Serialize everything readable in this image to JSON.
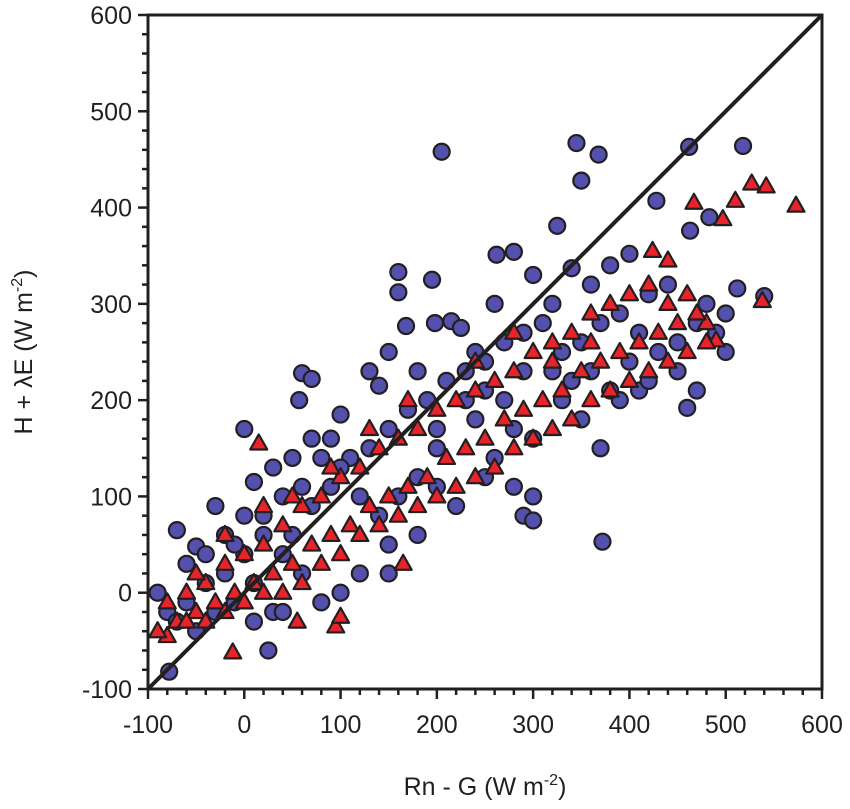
{
  "chart_data": {
    "type": "scatter",
    "title": "",
    "xlabel": "Rn - G (W m",
    "xlabel_sup": "-2",
    "xlabel_end": ")",
    "ylabel": "H + λE (W m",
    "ylabel_sup": "-2",
    "ylabel_end": ")",
    "xlim": [
      -100,
      600
    ],
    "ylim": [
      -100,
      600
    ],
    "xticks": [
      -100,
      0,
      100,
      200,
      300,
      400,
      500,
      600
    ],
    "yticks": [
      -100,
      0,
      100,
      200,
      300,
      400,
      500,
      600
    ],
    "xtick_labels": [
      "-100",
      "0",
      "100",
      "200",
      "300",
      "400",
      "500",
      "600"
    ],
    "ytick_labels": [
      "-100",
      "0",
      "100",
      "200",
      "300",
      "400",
      "500",
      "600"
    ],
    "minor_tick_step": 20,
    "grid": false,
    "reference_line": {
      "name": "1:1 line",
      "x": [
        -100,
        600
      ],
      "y": [
        -100,
        600
      ],
      "color": "#231f20"
    },
    "series": [
      {
        "name": "circles",
        "marker": "circle",
        "color": "#5350ae",
        "points": [
          [
            205,
            458
          ],
          [
            345,
            467
          ],
          [
            368,
            455
          ],
          [
            350,
            428
          ],
          [
            462,
            463
          ],
          [
            518,
            464
          ],
          [
            428,
            407
          ],
          [
            483,
            390
          ],
          [
            463,
            376
          ],
          [
            325,
            381
          ],
          [
            280,
            354
          ],
          [
            262,
            351
          ],
          [
            400,
            352
          ],
          [
            160,
            333
          ],
          [
            195,
            325
          ],
          [
            160,
            312
          ],
          [
            168,
            277
          ],
          [
            198,
            280
          ],
          [
            215,
            282
          ],
          [
            225,
            275
          ],
          [
            340,
            337
          ],
          [
            540,
            308
          ],
          [
            512,
            316
          ],
          [
            60,
            228
          ],
          [
            70,
            222
          ],
          [
            57,
            200
          ],
          [
            0,
            170
          ],
          [
            100,
            185
          ],
          [
            372,
            53
          ],
          [
            290,
            80
          ],
          [
            300,
            75
          ],
          [
            10,
            115
          ],
          [
            -78,
            -82
          ],
          [
            25,
            -60
          ],
          [
            460,
            192
          ],
          [
            470,
            210
          ],
          [
            -70,
            65
          ],
          [
            -50,
            48
          ],
          [
            130,
            230
          ],
          [
            140,
            215
          ],
          [
            150,
            250
          ],
          [
            180,
            230
          ],
          [
            240,
            250
          ],
          [
            260,
            300
          ],
          [
            300,
            330
          ],
          [
            320,
            300
          ],
          [
            360,
            320
          ],
          [
            380,
            340
          ],
          [
            420,
            310
          ],
          [
            440,
            320
          ],
          [
            480,
            300
          ],
          [
            500,
            290
          ],
          [
            300,
            100
          ],
          [
            280,
            110
          ],
          [
            250,
            120
          ],
          [
            220,
            90
          ],
          [
            180,
            60
          ],
          [
            150,
            50
          ],
          [
            120,
            20
          ],
          [
            100,
            0
          ],
          [
            80,
            -10
          ],
          [
            60,
            20
          ],
          [
            40,
            40
          ],
          [
            20,
            60
          ],
          [
            0,
            40
          ],
          [
            -20,
            20
          ],
          [
            -40,
            10
          ],
          [
            -60,
            -10
          ],
          [
            -80,
            -20
          ],
          [
            -90,
            0
          ],
          [
            -70,
            -30
          ],
          [
            -50,
            -40
          ],
          [
            -30,
            -20
          ],
          [
            -10,
            -10
          ],
          [
            10,
            10
          ],
          [
            30,
            -20
          ],
          [
            50,
            60
          ],
          [
            70,
            90
          ],
          [
            90,
            110
          ],
          [
            110,
            140
          ],
          [
            130,
            150
          ],
          [
            150,
            170
          ],
          [
            170,
            190
          ],
          [
            190,
            200
          ],
          [
            210,
            220
          ],
          [
            230,
            230
          ],
          [
            250,
            240
          ],
          [
            270,
            260
          ],
          [
            290,
            270
          ],
          [
            310,
            280
          ],
          [
            330,
            250
          ],
          [
            350,
            260
          ],
          [
            370,
            280
          ],
          [
            390,
            290
          ],
          [
            410,
            270
          ],
          [
            430,
            250
          ],
          [
            450,
            260
          ],
          [
            470,
            280
          ],
          [
            490,
            270
          ],
          [
            330,
            200
          ],
          [
            350,
            180
          ],
          [
            370,
            150
          ],
          [
            390,
            200
          ],
          [
            410,
            210
          ],
          [
            300,
            160
          ],
          [
            280,
            170
          ],
          [
            260,
            140
          ],
          [
            240,
            180
          ],
          [
            200,
            150
          ],
          [
            180,
            120
          ],
          [
            160,
            100
          ],
          [
            140,
            80
          ],
          [
            120,
            100
          ],
          [
            100,
            130
          ],
          [
            80,
            140
          ],
          [
            60,
            110
          ],
          [
            40,
            100
          ],
          [
            20,
            80
          ],
          [
            0,
            80
          ],
          [
            -20,
            60
          ],
          [
            -40,
            40
          ],
          [
            -60,
            30
          ],
          [
            30,
            130
          ],
          [
            50,
            140
          ],
          [
            70,
            160
          ],
          [
            90,
            160
          ],
          [
            200,
            170
          ],
          [
            230,
            200
          ],
          [
            270,
            200
          ],
          [
            320,
            230
          ],
          [
            360,
            230
          ],
          [
            400,
            240
          ],
          [
            450,
            230
          ],
          [
            500,
            250
          ],
          [
            -30,
            90
          ],
          [
            -10,
            50
          ],
          [
            10,
            -30
          ],
          [
            40,
            -20
          ],
          [
            150,
            20
          ],
          [
            200,
            110
          ],
          [
            250,
            210
          ],
          [
            290,
            230
          ],
          [
            340,
            220
          ],
          [
            380,
            210
          ],
          [
            420,
            220
          ]
        ]
      },
      {
        "name": "triangles",
        "marker": "triangle",
        "color": "#e8242a",
        "points": [
          [
            573,
            402
          ],
          [
            542,
            422
          ],
          [
            527,
            425
          ],
          [
            497,
            388
          ],
          [
            510,
            407
          ],
          [
            467,
            405
          ],
          [
            538,
            303
          ],
          [
            424,
            355
          ],
          [
            440,
            345
          ],
          [
            480,
            280
          ],
          [
            490,
            262
          ],
          [
            15,
            155
          ],
          [
            -12,
            -62
          ],
          [
            -80,
            -45
          ],
          [
            95,
            -35
          ],
          [
            55,
            -30
          ],
          [
            165,
            30
          ],
          [
            100,
            -25
          ],
          [
            -90,
            -40
          ],
          [
            -70,
            -30
          ],
          [
            -50,
            -20
          ],
          [
            -30,
            -10
          ],
          [
            -10,
            0
          ],
          [
            10,
            10
          ],
          [
            30,
            20
          ],
          [
            50,
            30
          ],
          [
            70,
            50
          ],
          [
            90,
            60
          ],
          [
            110,
            70
          ],
          [
            130,
            90
          ],
          [
            150,
            100
          ],
          [
            170,
            110
          ],
          [
            190,
            120
          ],
          [
            210,
            140
          ],
          [
            230,
            150
          ],
          [
            250,
            160
          ],
          [
            270,
            180
          ],
          [
            290,
            190
          ],
          [
            310,
            200
          ],
          [
            330,
            210
          ],
          [
            350,
            230
          ],
          [
            370,
            240
          ],
          [
            390,
            250
          ],
          [
            410,
            260
          ],
          [
            430,
            270
          ],
          [
            450,
            280
          ],
          [
            470,
            290
          ],
          [
            -60,
            0
          ],
          [
            -40,
            10
          ],
          [
            -20,
            30
          ],
          [
            0,
            40
          ],
          [
            20,
            50
          ],
          [
            40,
            70
          ],
          [
            60,
            90
          ],
          [
            80,
            100
          ],
          [
            100,
            120
          ],
          [
            120,
            130
          ],
          [
            140,
            150
          ],
          [
            160,
            160
          ],
          [
            180,
            170
          ],
          [
            200,
            190
          ],
          [
            220,
            200
          ],
          [
            240,
            210
          ],
          [
            260,
            220
          ],
          [
            280,
            230
          ],
          [
            300,
            250
          ],
          [
            320,
            260
          ],
          [
            340,
            270
          ],
          [
            360,
            290
          ],
          [
            380,
            300
          ],
          [
            400,
            310
          ],
          [
            420,
            320
          ],
          [
            440,
            300
          ],
          [
            460,
            310
          ],
          [
            -80,
            -10
          ],
          [
            -60,
            -30
          ],
          [
            -40,
            -30
          ],
          [
            -20,
            -20
          ],
          [
            0,
            -10
          ],
          [
            20,
            0
          ],
          [
            40,
            0
          ],
          [
            60,
            10
          ],
          [
            80,
            30
          ],
          [
            100,
            40
          ],
          [
            120,
            60
          ],
          [
            140,
            70
          ],
          [
            160,
            80
          ],
          [
            180,
            90
          ],
          [
            200,
            100
          ],
          [
            220,
            110
          ],
          [
            240,
            120
          ],
          [
            260,
            130
          ],
          [
            280,
            150
          ],
          [
            300,
            160
          ],
          [
            320,
            170
          ],
          [
            340,
            180
          ],
          [
            360,
            200
          ],
          [
            380,
            210
          ],
          [
            400,
            220
          ],
          [
            420,
            230
          ],
          [
            440,
            240
          ],
          [
            460,
            250
          ],
          [
            480,
            260
          ],
          [
            240,
            240
          ],
          [
            280,
            270
          ],
          [
            320,
            240
          ],
          [
            360,
            260
          ],
          [
            170,
            200
          ],
          [
            130,
            170
          ],
          [
            90,
            130
          ],
          [
            50,
            100
          ],
          [
            20,
            90
          ],
          [
            -20,
            60
          ],
          [
            -50,
            20
          ]
        ]
      }
    ]
  }
}
